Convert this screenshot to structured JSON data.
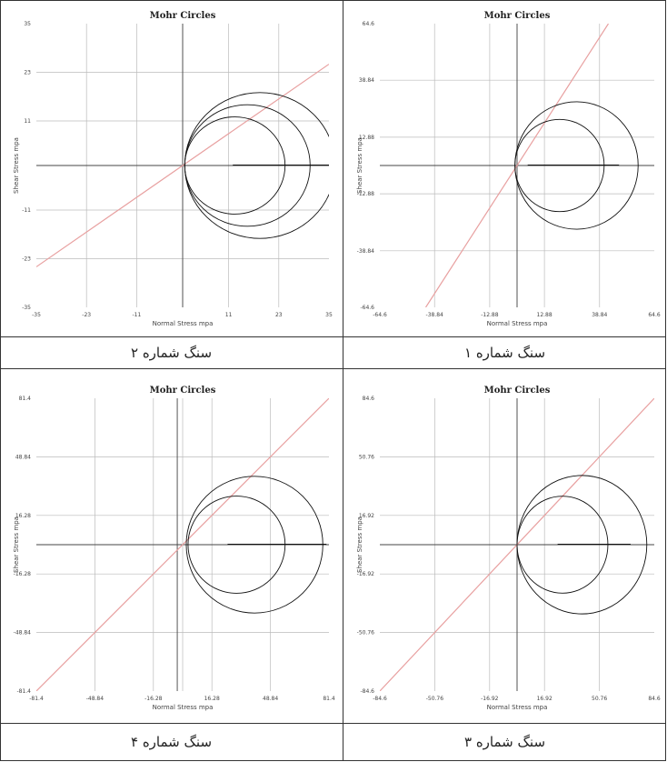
{
  "captions": {
    "top_left": "سنگ شماره ۲",
    "top_right": "سنگ شماره ۱",
    "bottom_left": "سنگ شماره ۴",
    "bottom_right": "سنگ شماره ۳"
  },
  "colors": {
    "envelope": "#e8a0a0",
    "circle": "#111111",
    "grid": "#bbbbbb",
    "axis": "#444444"
  },
  "chart_data": [
    {
      "id": "top_left",
      "type": "scatter",
      "title": "Mohr Circles",
      "xlabel": "Normal Stress mpa",
      "ylabel": "Shear Stress mpa",
      "xlim": [
        -35,
        35
      ],
      "ylim": [
        -35,
        35
      ],
      "xticks": [
        -35,
        -23,
        -11,
        11,
        23,
        35
      ],
      "xtick_labels": [
        "-35",
        "-23",
        "-11",
        "11",
        "23",
        "35"
      ],
      "yticks": [
        35,
        23,
        11,
        -11,
        -23,
        -35
      ],
      "ytick_labels": [
        "35",
        "23",
        "11",
        "-11",
        "-23",
        "-35"
      ],
      "vgrid": [
        -23,
        -11,
        0,
        11,
        23
      ],
      "hgrid": [
        23,
        11,
        -11,
        -23
      ],
      "vaxis": 0,
      "circles": [
        {
          "center": 12.5,
          "radius": 12
        },
        {
          "center": 15.5,
          "radius": 15
        },
        {
          "center": 18.5,
          "radius": 18
        }
      ],
      "envelope": [
        [
          -35,
          -25
        ],
        [
          35,
          25
        ]
      ],
      "baseline": [
        [
          12,
          0
        ],
        [
          35,
          0
        ]
      ],
      "grid": true
    },
    {
      "id": "top_right",
      "type": "scatter",
      "title": "Mohr Circles",
      "xlabel": "Normal Stress mpa",
      "ylabel": "Shear Stress mpa",
      "xlim": [
        -64.6,
        64.6
      ],
      "ylim": [
        -64.6,
        64.6
      ],
      "xticks": [
        -64.6,
        -38.84,
        -12.88,
        12.88,
        38.84,
        64.6
      ],
      "xtick_labels": [
        "-64.6",
        "-38.84",
        "-12.88",
        "12.88",
        "38.84",
        "64.6"
      ],
      "yticks": [
        64.6,
        38.84,
        12.88,
        -12.88,
        -38.84,
        -64.6
      ],
      "ytick_labels": [
        "64.6",
        "38.84",
        "12.88",
        "-12.88",
        "-38.84",
        "-64.6"
      ],
      "vgrid": [
        -38.84,
        -12.88,
        0,
        12.88,
        38.84
      ],
      "hgrid": [
        38.84,
        12.88,
        -12.88,
        -38.84
      ],
      "vaxis": 0,
      "circles": [
        {
          "center": 20,
          "radius": 21
        },
        {
          "center": 28,
          "radius": 29
        }
      ],
      "envelope": [
        [
          -43,
          -64.6
        ],
        [
          43,
          64.6
        ]
      ],
      "baseline": [
        [
          5,
          0
        ],
        [
          48,
          0
        ]
      ],
      "grid": true
    },
    {
      "id": "bottom_left",
      "type": "scatter",
      "title": "Mohr Circles",
      "xlabel": "Normal Stress mpa",
      "ylabel": "Shear Stress mpa",
      "xlim": [
        -81.4,
        81.4
      ],
      "ylim": [
        -81.4,
        81.4
      ],
      "xticks": [
        -81.4,
        -48.84,
        -16.28,
        16.28,
        48.84,
        81.4
      ],
      "xtick_labels": [
        "-81.4",
        "-48.84",
        "-16.28",
        "16.28",
        "48.84",
        "81.4"
      ],
      "yticks": [
        81.4,
        48.84,
        16.28,
        -16.28,
        -48.84,
        -81.4
      ],
      "ytick_labels": [
        "81.4",
        "48.84",
        "16.28",
        "-16.28",
        "-48.84",
        "-81.4"
      ],
      "vgrid": [
        -48.84,
        -16.28,
        0,
        16.28,
        48.84
      ],
      "hgrid": [
        48.84,
        16.28,
        -16.28,
        -48.84
      ],
      "vaxis": -3,
      "circles": [
        {
          "center": 30,
          "radius": 27
        },
        {
          "center": 40,
          "radius": 38
        }
      ],
      "envelope": [
        [
          -81.4,
          -81.4
        ],
        [
          81.4,
          81.4
        ]
      ],
      "baseline": [
        [
          25,
          0
        ],
        [
          80,
          0
        ]
      ],
      "grid": true
    },
    {
      "id": "bottom_right",
      "type": "scatter",
      "title": "Mohr Circles",
      "xlabel": "Normal Stress mpa",
      "ylabel": "Shear Stress mpa",
      "xlim": [
        -84.6,
        84.6
      ],
      "ylim": [
        -84.6,
        84.6
      ],
      "xticks": [
        -84.6,
        -50.76,
        -16.92,
        16.92,
        50.76,
        84.6
      ],
      "xtick_labels": [
        "-84.6",
        "-50.76",
        "-16.92",
        "16.92",
        "50.76",
        "84.6"
      ],
      "yticks": [
        84.6,
        50.76,
        16.92,
        -16.92,
        -50.76,
        -84.6
      ],
      "ytick_labels": [
        "84.6",
        "50.76",
        "16.92",
        "-16.92",
        "-50.76",
        "-84.6"
      ],
      "vgrid": [
        -50.76,
        -16.92,
        0,
        16.92,
        50.76
      ],
      "hgrid": [
        50.76,
        16.92,
        -16.92,
        -50.76
      ],
      "vaxis": 0,
      "circles": [
        {
          "center": 28,
          "radius": 28
        },
        {
          "center": 40,
          "radius": 40
        }
      ],
      "envelope": [
        [
          -84.6,
          -84.6
        ],
        [
          84.6,
          84.6
        ]
      ],
      "baseline": [
        [
          25,
          0
        ],
        [
          70,
          0
        ]
      ],
      "grid": true
    }
  ]
}
